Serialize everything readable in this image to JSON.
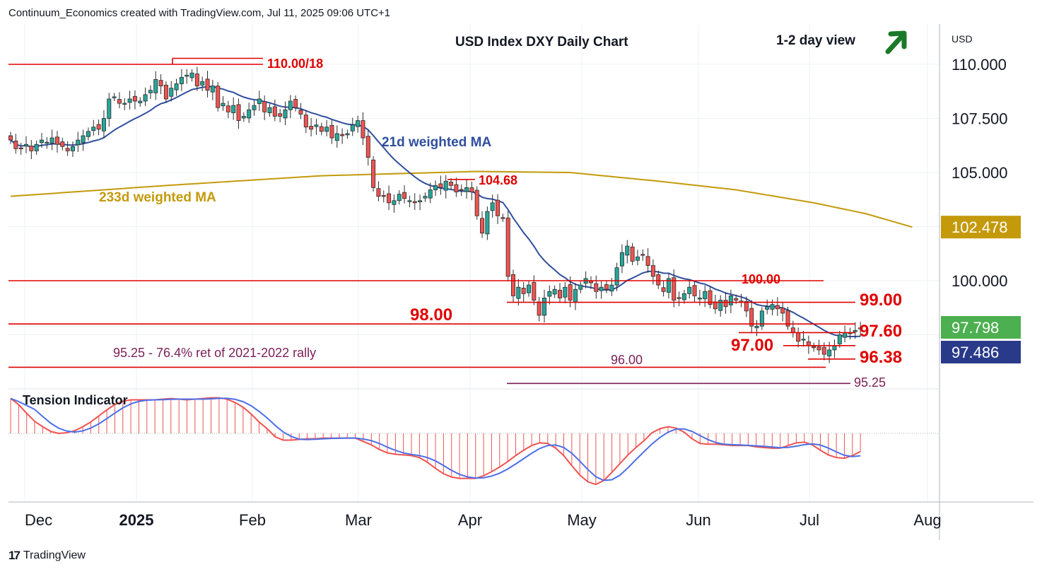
{
  "header": {
    "credit": "Continuum_Economics created with TradingView.com, Jul 11, 2025 09:06 UTC+1"
  },
  "footer": {
    "brand": "TradingView"
  },
  "colors": {
    "up": "#26a69a",
    "down": "#ef5350",
    "ma21": "#2f4e9e",
    "ma233": "#c49a0b",
    "levels": "#e00000",
    "ret": "#7b1f57",
    "arrow": "#1b7a2a",
    "tension_bar": "#ef5350",
    "tension_line": "#4c6fe8"
  },
  "chart_data": [
    {
      "type": "candlestick",
      "title": "USD Index DXY Daily Chart",
      "subtitle": "1-2 day view",
      "currency": "USD",
      "x_ticks": [
        "Dec",
        "2025",
        "Feb",
        "Mar",
        "Apr",
        "May",
        "Jun",
        "Jul",
        "Aug"
      ],
      "y_ticks": [
        "110.000",
        "107.500",
        "105.000",
        "100.000"
      ],
      "ylim": [
        94.6,
        111.7
      ],
      "price_badges": [
        {
          "label": "102.478",
          "value": 102.478,
          "color": "#c49a0b"
        },
        {
          "label": "97.798",
          "value": 97.798,
          "color": "#4caf50"
        },
        {
          "label": "97.486",
          "value": 97.486,
          "color": "#2a3a8a"
        }
      ],
      "series_labels": [
        {
          "name": "21d weighted MA",
          "color": "#2f4e9e"
        },
        {
          "name": "233d weighted MA",
          "color": "#c49a0b"
        }
      ],
      "levels": [
        {
          "label": "110.00/18",
          "value": 110.0
        },
        {
          "label": "104.68",
          "value": 104.68
        },
        {
          "label": "100.00",
          "value": 100.0
        },
        {
          "label": "99.00",
          "value": 99.0
        },
        {
          "label": "98.00",
          "value": 98.0
        },
        {
          "label": "97.60",
          "value": 97.6
        },
        {
          "label": "97.00",
          "value": 97.0
        },
        {
          "label": "96.38",
          "value": 96.38
        },
        {
          "label": "96.00",
          "value": 96.0
        },
        {
          "label": "95.25",
          "value": 95.25
        }
      ],
      "annotations": [
        "95.25 - 76.4% ret of 2021-2022 rally"
      ],
      "closes": [
        106.5,
        106.1,
        106.1,
        106.3,
        106.0,
        106.3,
        106.5,
        106.4,
        106.6,
        106.3,
        106.2,
        106.0,
        106.2,
        106.5,
        106.7,
        106.9,
        107.1,
        107.0,
        107.5,
        108.4,
        108.5,
        108.2,
        108.2,
        108.4,
        108.3,
        108.3,
        108.6,
        108.8,
        109.3,
        109.0,
        108.4,
        108.9,
        109.1,
        109.4,
        109.5,
        109.6,
        109.0,
        109.2,
        108.8,
        109.0,
        108.0,
        108.2,
        107.8,
        108.1,
        107.4,
        107.6,
        107.9,
        108.1,
        108.4,
        107.8,
        108.0,
        107.6,
        107.6,
        107.9,
        108.3,
        108.0,
        107.7,
        107.1,
        107.0,
        107.2,
        106.9,
        107.1,
        106.6,
        106.8,
        106.7,
        106.8,
        107.2,
        107.4,
        106.6,
        105.7,
        104.3,
        103.9,
        103.9,
        103.6,
        103.7,
        104.0,
        103.8,
        103.7,
        103.6,
        103.7,
        103.9,
        104.2,
        104.4,
        104.3,
        104.6,
        104.4,
        104.1,
        104.2,
        104.3,
        104.1,
        103.0,
        102.2,
        103.2,
        103.6,
        103.0,
        102.9,
        100.2,
        99.3,
        99.7,
        99.4,
        99.8,
        99.1,
        98.4,
        99.2,
        99.5,
        99.6,
        99.2,
        99.7,
        99.1,
        99.6,
        99.8,
        100.1,
        99.9,
        99.5,
        99.7,
        99.6,
        99.8,
        100.6,
        101.3,
        101.6,
        100.9,
        101.1,
        101.2,
        100.7,
        100.2,
        99.8,
        99.5,
        100.1,
        99.1,
        99.2,
        99.4,
        99.7,
        99.3,
        99.2,
        99.5,
        98.9,
        98.7,
        99.1,
        98.8,
        99.3,
        99.1,
        99.0,
        98.6,
        97.9,
        97.9,
        98.6,
        98.8,
        98.9,
        98.7,
        98.5,
        97.9,
        97.6,
        97.2,
        97.3,
        97.0,
        96.9,
        96.8,
        96.6,
        96.8,
        97.0,
        97.5,
        97.6,
        97.6,
        97.7,
        97.8
      ]
    },
    {
      "type": "area",
      "title": "Tension Indicator",
      "baseline": 0,
      "values": [
        52,
        43,
        30,
        18,
        10,
        3,
        0,
        1,
        4,
        10,
        17,
        26,
        35,
        43,
        48,
        50,
        50,
        50,
        50,
        51,
        52,
        51,
        50,
        51,
        52,
        53,
        53,
        51,
        46,
        39,
        29,
        17,
        7,
        -5,
        -10,
        -10,
        -9,
        -8,
        -8,
        -7,
        -7,
        -7,
        -7,
        -7,
        -12,
        -17,
        -24,
        -29,
        -31,
        -32,
        -33,
        -36,
        -43,
        -52,
        -60,
        -65,
        -67,
        -67,
        -67,
        -63,
        -57,
        -50,
        -42,
        -33,
        -25,
        -18,
        -14,
        -15,
        -22,
        -33,
        -48,
        -62,
        -72,
        -76,
        -70,
        -58,
        -45,
        -32,
        -21,
        -11,
        1,
        7,
        10,
        8,
        2,
        -8,
        -15,
        -16,
        -16,
        -17,
        -18,
        -18,
        -18,
        -20,
        -21,
        -22,
        -22,
        -18,
        -14,
        -13,
        -17,
        -25,
        -32,
        -36,
        -37,
        -33,
        -27
      ]
    }
  ]
}
